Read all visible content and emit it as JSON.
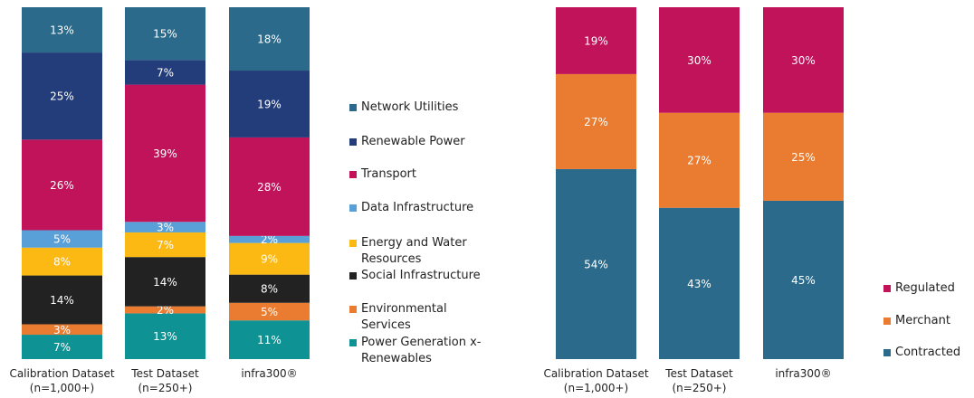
{
  "chart_data": [
    {
      "type": "stacked_bar",
      "categories": [
        "Calibration Dataset (n=1,000+)",
        "Test Dataset (n=250+)",
        "infra300®"
      ],
      "series": [
        {
          "name": "Power Generation x-Renewables",
          "color": "#0e9294",
          "values": [
            7,
            13,
            11
          ],
          "value_labels": [
            "7%",
            "13%",
            "11%"
          ]
        },
        {
          "name": "Environmental Services",
          "color": "#e97c30",
          "values": [
            3,
            2,
            5
          ],
          "value_labels": [
            "3%",
            "2%",
            "5%"
          ]
        },
        {
          "name": "Social Infrastructure",
          "color": "#222222",
          "values": [
            14,
            14,
            8
          ],
          "value_labels": [
            "14%",
            "14%",
            "8%"
          ]
        },
        {
          "name": "Energy and Water Resources",
          "color": "#fdb913",
          "values": [
            8,
            7,
            9
          ],
          "value_labels": [
            "8%",
            "7%",
            "9%"
          ]
        },
        {
          "name": "Data Infrastructure",
          "color": "#5aa0d8",
          "values": [
            5,
            3,
            2
          ],
          "value_labels": [
            "5%",
            "3%",
            "2%"
          ]
        },
        {
          "name": "Transport",
          "color": "#c0135a",
          "values": [
            26,
            39,
            28
          ],
          "value_labels": [
            "26%",
            "39%",
            "28%"
          ]
        },
        {
          "name": "Renewable Power",
          "color": "#233d7a",
          "values": [
            25,
            7,
            19
          ],
          "value_labels": [
            "25%",
            "7%",
            "19%"
          ]
        },
        {
          "name": "Network Utilities",
          "color": "#2b6a8a",
          "values": [
            13,
            15,
            18
          ],
          "value_labels": [
            "13%",
            "15%",
            "18%"
          ]
        }
      ]
    },
    {
      "type": "stacked_bar",
      "categories": [
        "Calibration Dataset (n=1,000+)",
        "Test Dataset (n=250+)",
        "infra300®"
      ],
      "series": [
        {
          "name": "Contracted",
          "color": "#2b6a8a",
          "values": [
            54,
            43,
            45
          ],
          "value_labels": [
            "54%",
            "43%",
            "45%"
          ]
        },
        {
          "name": "Merchant",
          "color": "#e97c30",
          "values": [
            27,
            27,
            25
          ],
          "value_labels": [
            "27%",
            "27%",
            "25%"
          ]
        },
        {
          "name": "Regulated",
          "color": "#c0135a",
          "values": [
            19,
            30,
            30
          ],
          "value_labels": [
            "19%",
            "30%",
            "30%"
          ]
        }
      ]
    }
  ]
}
